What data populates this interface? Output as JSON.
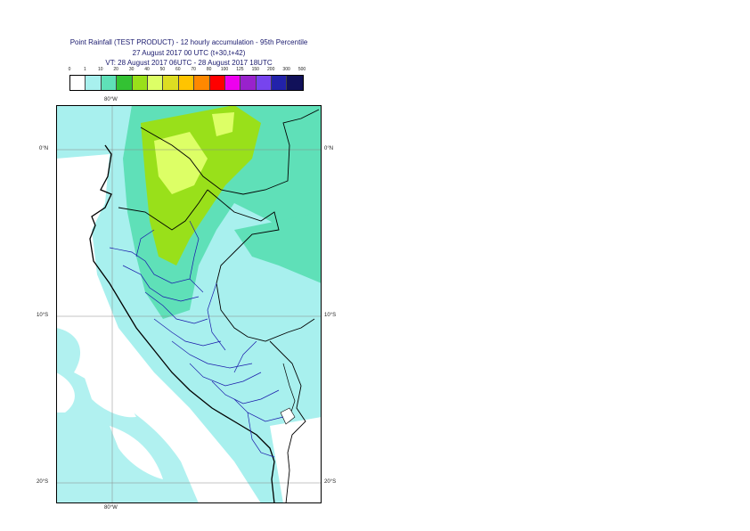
{
  "title": {
    "line1": "Point Rainfall (TEST PRODUCT) - 12 hourly accumulation - 95th Percentile",
    "line2": "27 August 2017 00 UTC (t+30,t+42)",
    "line3": "VT: 28 August 2017 06UTC - 28 August 2017 18UTC"
  },
  "legend": {
    "labels": [
      "0",
      "1",
      "10",
      "20",
      "30",
      "40",
      "50",
      "60",
      "70",
      "80",
      "100",
      "125",
      "150",
      "200",
      "300",
      "500"
    ],
    "colors": [
      "#ffffff",
      "#a8f0ee",
      "#5fe0b8",
      "#33c233",
      "#99e01a",
      "#ddff66",
      "#dddd22",
      "#ffc400",
      "#ff8800",
      "#ff0000",
      "#ee00ee",
      "#9922cc",
      "#7744ee",
      "#2222aa",
      "#11115a"
    ]
  },
  "axes": {
    "lon_top": "80°W",
    "lon_bottom": "80°W",
    "lat_0_left": "0°N",
    "lat_0_right": "0°N",
    "lat_10_left": "10°S",
    "lat_10_right": "10°S",
    "lat_20_left": "20°S",
    "lat_20_right": "20°S"
  },
  "map": {
    "ocean_color": "#ffffff",
    "light_rain_color": "#a8f0ee",
    "moderate_rain_color": "#5fe0b8",
    "heavy_rain_color": "#99e01a",
    "peak_rain_color": "#ddff66",
    "border_country_color": "#000000",
    "border_region_color": "#1a1aaa"
  }
}
